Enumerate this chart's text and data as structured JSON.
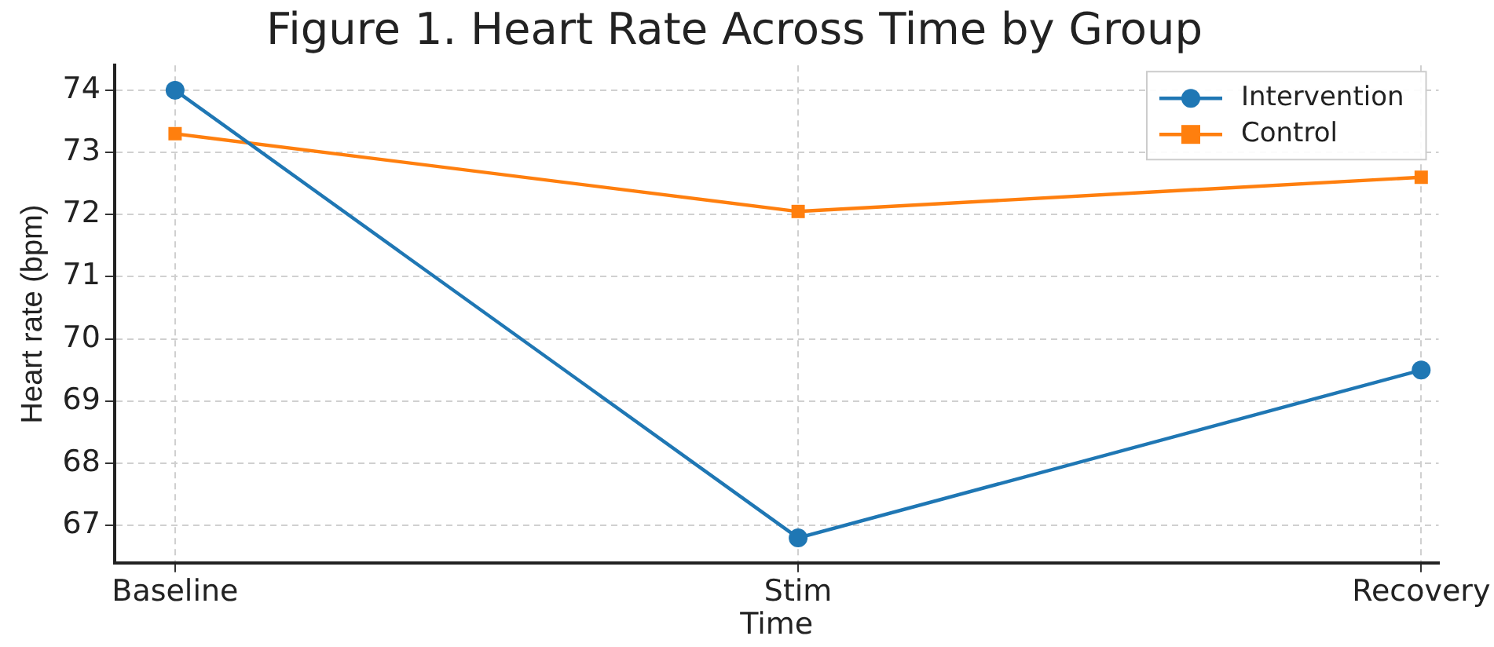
{
  "chart_data": {
    "type": "line",
    "title": "Figure 1. Heart Rate Across Time by Group",
    "xlabel": "Time",
    "ylabel": "Heart rate (bpm)",
    "categories": [
      "Baseline",
      "Stim",
      "Recovery"
    ],
    "series": [
      {
        "name": "Intervention",
        "color": "#1f77b4",
        "marker": "circle",
        "values": [
          74.0,
          66.8,
          69.5
        ]
      },
      {
        "name": "Control",
        "color": "#ff7f0e",
        "marker": "square",
        "values": [
          73.3,
          72.05,
          72.6
        ]
      }
    ],
    "ylim": [
      66.4,
      74.4
    ],
    "yticks": [
      67,
      68,
      69,
      70,
      71,
      72,
      73,
      74
    ],
    "grid": true,
    "legend": "top right",
    "line_style": "solid"
  }
}
